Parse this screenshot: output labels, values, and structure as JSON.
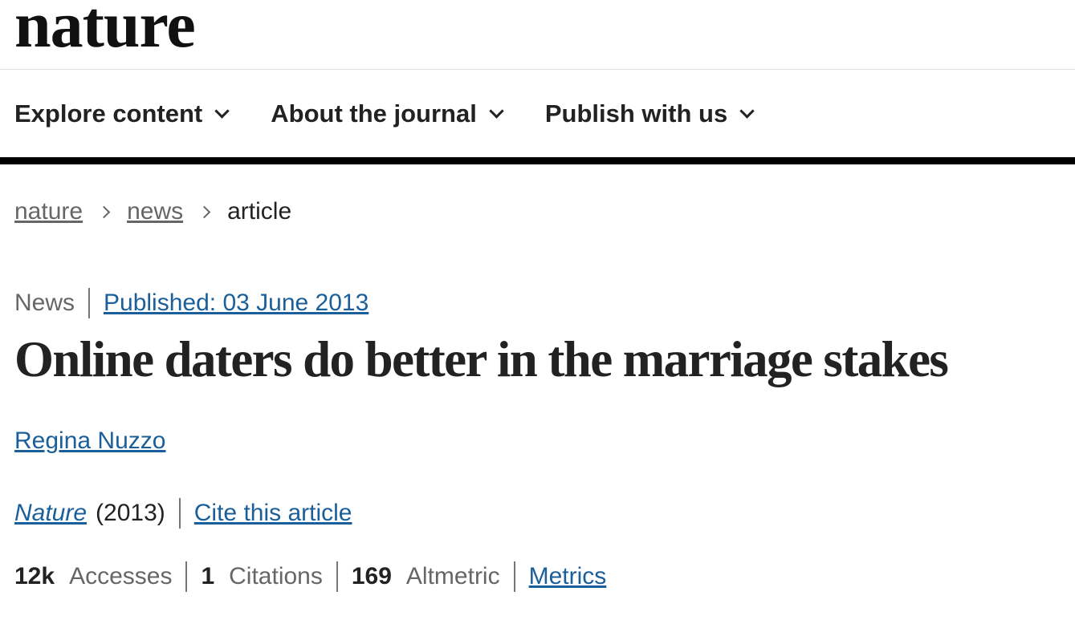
{
  "header": {
    "logo": "nature"
  },
  "nav": {
    "items": [
      {
        "label": "Explore content",
        "icon": "chevron-down-icon"
      },
      {
        "label": "About the journal",
        "icon": "chevron-down-icon"
      },
      {
        "label": "Publish with us",
        "icon": "chevron-down-icon"
      }
    ]
  },
  "breadcrumb": {
    "items": [
      {
        "label": "nature",
        "link": true
      },
      {
        "label": "news",
        "link": true
      },
      {
        "label": "article",
        "link": false
      }
    ],
    "separator_icon": "chevron-right-icon"
  },
  "article": {
    "type": "News",
    "published": "Published: 03 June 2013",
    "title": "Online daters do better in the marriage stakes",
    "author": "Regina Nuzzo",
    "journal": "Nature",
    "year": "(2013)",
    "cite_label": "Cite this article"
  },
  "metrics": {
    "accesses": {
      "value": "12k",
      "label": "Accesses"
    },
    "citations": {
      "value": "1",
      "label": "Citations"
    },
    "altmetric": {
      "value": "169",
      "label": "Altmetric"
    },
    "link_label": "Metrics"
  },
  "colors": {
    "link": "#1a5f99",
    "text": "#222222",
    "muted": "#666666",
    "rule": "#000000"
  }
}
